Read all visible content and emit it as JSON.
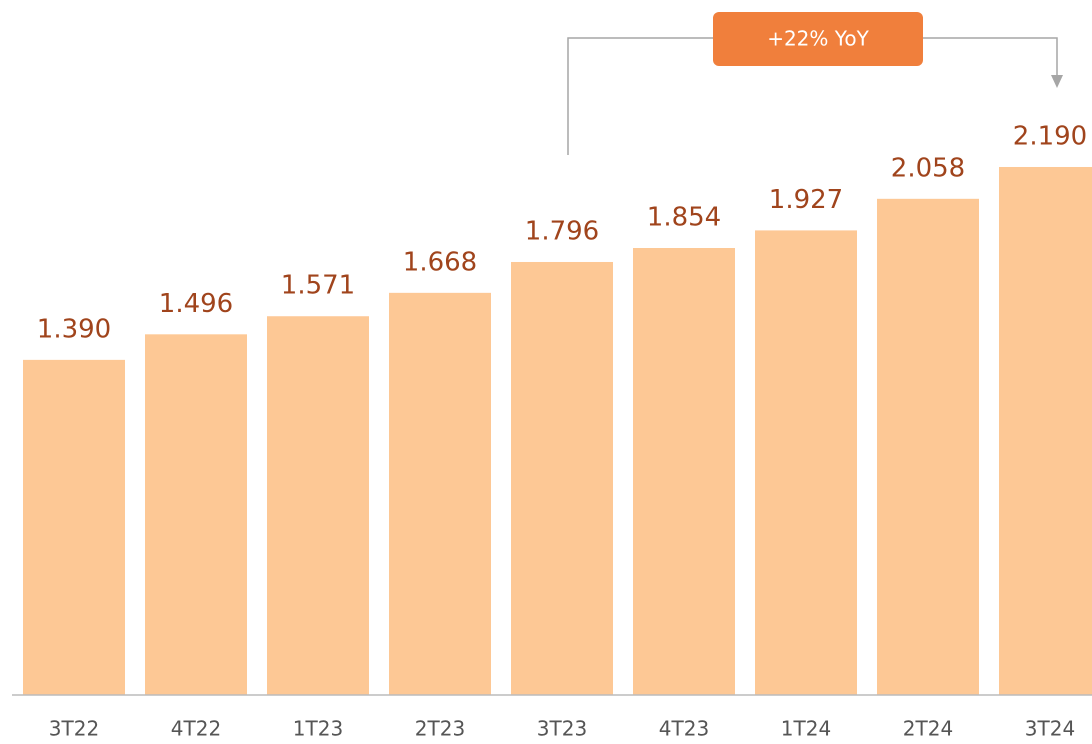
{
  "chart_data": {
    "type": "bar",
    "categories": [
      "3T22",
      "4T22",
      "1T23",
      "2T23",
      "3T23",
      "4T23",
      "1T24",
      "2T24",
      "3T24"
    ],
    "values": [
      1390,
      1496,
      1571,
      1668,
      1796,
      1854,
      1927,
      2058,
      2190
    ],
    "value_labels": [
      "1.390",
      "1.496",
      "1.571",
      "1.668",
      "1.796",
      "1.854",
      "1.927",
      "2.058",
      "2.190"
    ],
    "color": "#fdc895",
    "annotation": "+22% YoY"
  }
}
